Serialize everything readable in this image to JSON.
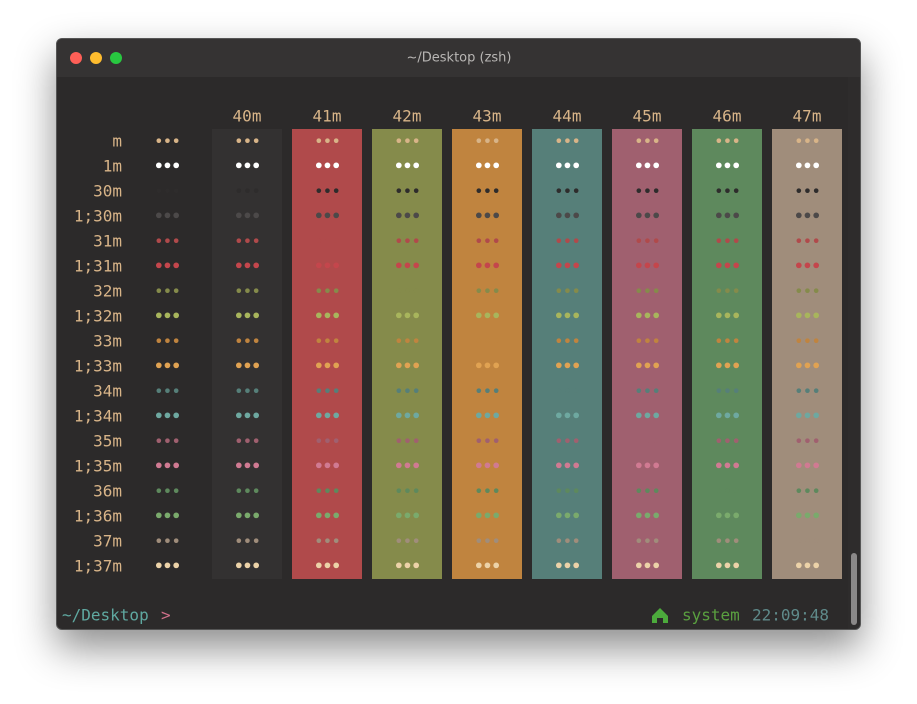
{
  "window": {
    "title": "~/Desktop (zsh)"
  },
  "table": {
    "cell_text": "•••",
    "columns": [
      {
        "label": "40m",
        "background": "#333131"
      },
      {
        "label": "41m",
        "background": "#b04a4b"
      },
      {
        "label": "42m",
        "background": "#858b4b"
      },
      {
        "label": "43m",
        "background": "#c0843f"
      },
      {
        "label": "44m",
        "background": "#567f79"
      },
      {
        "label": "45m",
        "background": "#a0606f"
      },
      {
        "label": "46m",
        "background": "#5e895d"
      },
      {
        "label": "47m",
        "background": "#a08d7b"
      }
    ],
    "rows": [
      {
        "label": "m",
        "color": "#d8b488"
      },
      {
        "label": "1m",
        "color": "#ffffff"
      },
      {
        "label": "30m",
        "color": "#2e2c2c"
      },
      {
        "label": "1;30m",
        "color": "#4c4949"
      },
      {
        "label": "31m",
        "color": "#b04a4b"
      },
      {
        "label": "1;31m",
        "color": "#c4464c"
      },
      {
        "label": "32m",
        "color": "#858b4b"
      },
      {
        "label": "1;32m",
        "color": "#a8b55c"
      },
      {
        "label": "33m",
        "color": "#c0843f"
      },
      {
        "label": "1;33m",
        "color": "#e0a252"
      },
      {
        "label": "34m",
        "color": "#567f79"
      },
      {
        "label": "1;34m",
        "color": "#6ea8a0"
      },
      {
        "label": "35m",
        "color": "#a0606f"
      },
      {
        "label": "1;35m",
        "color": "#d07a92"
      },
      {
        "label": "36m",
        "color": "#5e895d"
      },
      {
        "label": "1;36m",
        "color": "#7aaa6c"
      },
      {
        "label": "37m",
        "color": "#a08d7b"
      },
      {
        "label": "1;37m",
        "color": "#ecd2a8"
      }
    ]
  },
  "prompt": {
    "path": "~/Desktop",
    "symbol": ">"
  },
  "status": {
    "env": "system",
    "time": "22:09:48"
  }
}
